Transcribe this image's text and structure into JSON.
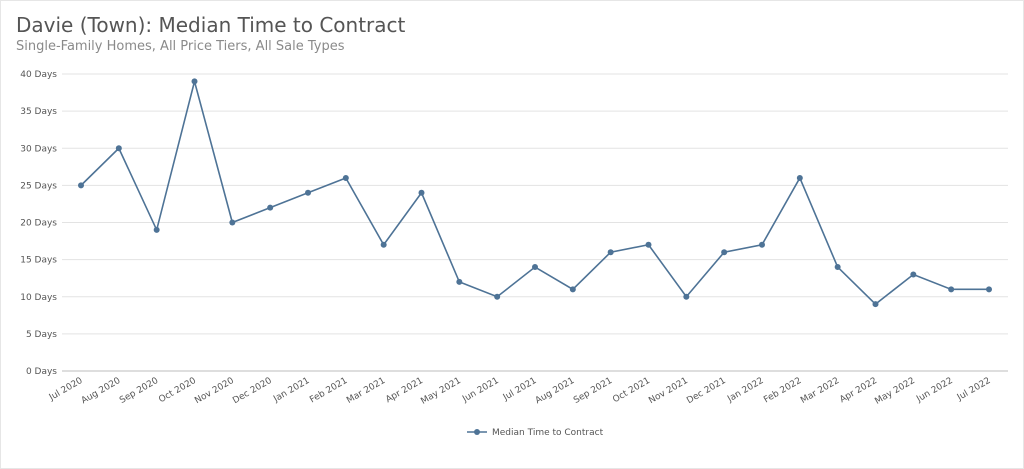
{
  "chart_data": {
    "type": "line",
    "title": "Davie (Town): Median Time to Contract",
    "subtitle": "Single-Family Homes, All Price Tiers, All Sale Types",
    "xlabel": "",
    "ylabel": "",
    "categories": [
      "Jul 2020",
      "Aug 2020",
      "Sep 2020",
      "Oct 2020",
      "Nov 2020",
      "Dec 2020",
      "Jan 2021",
      "Feb 2021",
      "Mar 2021",
      "Apr 2021",
      "May 2021",
      "Jun 2021",
      "Jul 2021",
      "Aug 2021",
      "Sep 2021",
      "Oct 2021",
      "Nov 2021",
      "Dec 2021",
      "Jan 2022",
      "Feb 2022",
      "Mar 2022",
      "Apr 2022",
      "May 2022",
      "Jun 2022",
      "Jul 2022"
    ],
    "series": [
      {
        "name": "Median Time to Contract",
        "values": [
          25,
          30,
          19,
          39,
          20,
          22,
          24,
          26,
          17,
          24,
          12,
          10,
          14,
          11,
          16,
          17,
          10,
          16,
          17,
          26,
          14,
          9,
          13,
          11,
          11
        ],
        "color": "#4e7396"
      }
    ],
    "ylim": [
      0,
      40
    ],
    "yticks": [
      0,
      5,
      10,
      15,
      20,
      25,
      30,
      35,
      40
    ],
    "ytick_labels": [
      "0 Days",
      "5 Days",
      "10 Days",
      "15 Days",
      "20 Days",
      "25 Days",
      "30 Days",
      "35 Days",
      "40 Days"
    ],
    "grid": true,
    "legend": "bottom-center"
  }
}
